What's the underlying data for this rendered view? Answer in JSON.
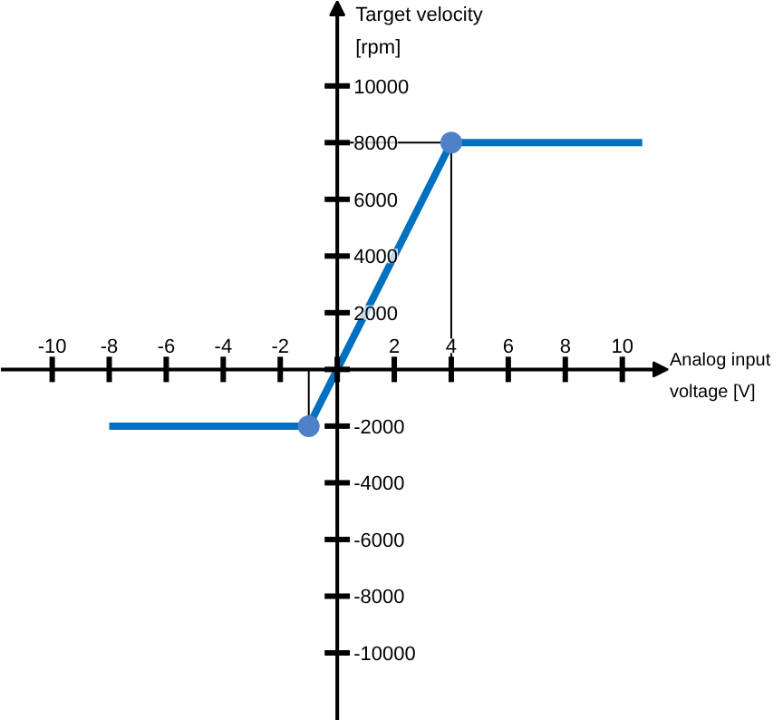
{
  "chart_data": {
    "type": "line",
    "xlabel": "Analog input voltage [V]",
    "ylabel": "Target velocity [rpm]",
    "xlim": [
      -11.8,
      11.6
    ],
    "ylim": [
      -12400,
      13000
    ],
    "xticks": [
      -10,
      -8,
      -6,
      -4,
      -2,
      {
        "value": 0,
        "label": null
      },
      2,
      4,
      6,
      8,
      10
    ],
    "yticks": [
      -10000,
      -8000,
      -6000,
      -4000,
      -2000,
      {
        "value": 0,
        "label": null
      },
      2000,
      4000,
      6000,
      8000,
      10000
    ],
    "grid": false,
    "series": [
      {
        "type": "line",
        "x": [
          -8,
          -1,
          4,
          10.7
        ],
        "values": [
          -2000,
          -2000,
          8000,
          8000
        ],
        "color": "#0070c0"
      },
      {
        "type": "scatter",
        "x": [
          -1,
          4
        ],
        "values": [
          -2000,
          8000
        ],
        "color": "#4f81c8",
        "marker": "circle"
      },
      {
        "type": "line",
        "x": [
          0,
          4,
          4
        ],
        "values": [
          8000,
          8000,
          0
        ],
        "color": "#000000"
      },
      {
        "type": "line",
        "x": [
          -1,
          -1
        ],
        "values": [
          0,
          -2000
        ],
        "color": "#000000"
      }
    ]
  }
}
